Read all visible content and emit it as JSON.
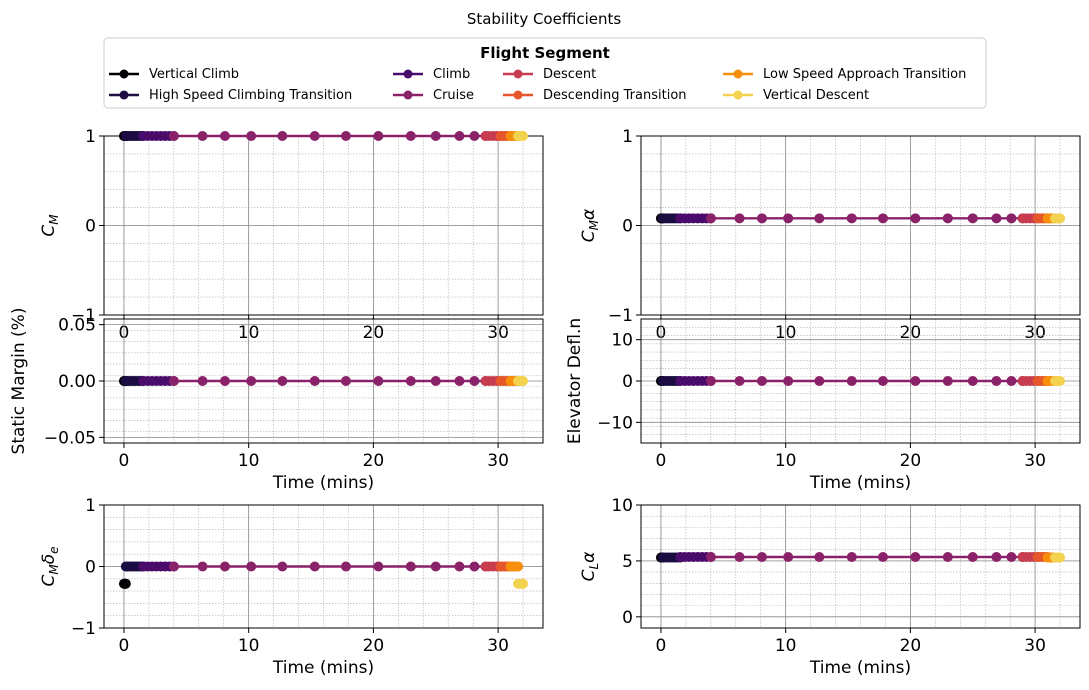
{
  "figure": {
    "title": "Stability Coefficients"
  },
  "legend": {
    "title": "Flight Segment",
    "entries": [
      {
        "name": "Vertical Climb",
        "color": "#000004"
      },
      {
        "name": "High Speed Climbing Transition",
        "color": "#1b0c41"
      },
      {
        "name": "Climb",
        "color": "#4a0c6b"
      },
      {
        "name": "Cruise",
        "color": "#8a226a"
      },
      {
        "name": "Descent",
        "color": "#c73d4f"
      },
      {
        "name": "Descending Transition",
        "color": "#e5562a"
      },
      {
        "name": "Low Speed Approach Transition",
        "color": "#f68f0d"
      },
      {
        "name": "Vertical Descent",
        "color": "#f3d250"
      }
    ]
  },
  "chart_data": [
    {
      "type": "line",
      "panel": "top-left",
      "ylabel": "C_M",
      "xlabel": "",
      "xlim": [
        -1.6,
        33.6
      ],
      "ylim": [
        -1,
        1
      ],
      "xticks": [
        0,
        10,
        20,
        30
      ],
      "yticks": [
        -1,
        0,
        1
      ],
      "grid": true,
      "segment_values": [
        1,
        1,
        1,
        1,
        1,
        1,
        1,
        1
      ]
    },
    {
      "type": "line",
      "panel": "top-right",
      "ylabel": "C_Mα",
      "xlabel": "",
      "xlim": [
        -1.6,
        33.6
      ],
      "ylim": [
        -1,
        1
      ],
      "xticks": [
        0,
        10,
        20,
        30
      ],
      "yticks": [
        -1,
        0,
        1
      ],
      "grid": true,
      "segment_values": [
        0.08,
        0.08,
        0.08,
        0.08,
        0.08,
        0.08,
        0.08,
        0.08
      ]
    },
    {
      "type": "line",
      "panel": "middle-left",
      "ylabel": "Static Margin (%)",
      "xlabel": "Time (mins)",
      "xlim": [
        -1.6,
        33.6
      ],
      "ylim": [
        -0.055,
        0.055
      ],
      "xticks": [
        0,
        10,
        20,
        30
      ],
      "yticks": [
        -0.05,
        0.0,
        0.05
      ],
      "ytick_labels": [
        "−0.05",
        "0.00",
        "0.05"
      ],
      "grid": true,
      "segment_values": [
        0,
        0,
        0,
        0,
        0,
        0,
        0,
        0
      ]
    },
    {
      "type": "line",
      "panel": "middle-right",
      "ylabel": "Elevator Defl.n",
      "xlabel": "Time (mins)",
      "xlim": [
        -1.6,
        33.6
      ],
      "ylim": [
        -15,
        15
      ],
      "xticks": [
        0,
        10,
        20,
        30
      ],
      "yticks": [
        -10,
        0,
        10
      ],
      "grid": true,
      "segment_values": [
        0,
        0,
        0,
        0,
        0,
        0,
        0,
        0
      ]
    },
    {
      "type": "line",
      "panel": "bottom-left",
      "ylabel": "C_Mδe",
      "xlabel": "Time (mins)",
      "xlim": [
        -1.6,
        33.6
      ],
      "ylim": [
        -1,
        1
      ],
      "xticks": [
        0,
        10,
        20,
        30
      ],
      "yticks": [
        -1,
        0,
        1
      ],
      "grid": true,
      "segment_values": [
        -0.28,
        0,
        0,
        0,
        0,
        0,
        0,
        -0.28
      ]
    },
    {
      "type": "line",
      "panel": "bottom-right",
      "ylabel": "C_Lα",
      "xlabel": "Time (mins)",
      "xlim": [
        -1.6,
        33.6
      ],
      "ylim": [
        -1,
        10
      ],
      "xticks": [
        0,
        10,
        20,
        30
      ],
      "yticks": [
        0,
        5,
        10
      ],
      "grid": true,
      "segment_values": [
        5.3,
        5.3,
        5.35,
        5.35,
        5.35,
        5.35,
        5.3,
        5.3
      ]
    }
  ],
  "segments": [
    {
      "name": "Vertical Climb",
      "times": [
        0,
        0.05,
        0.1,
        0.15
      ]
    },
    {
      "name": "High Speed Climbing Transition",
      "times": [
        0.15,
        0.35,
        0.55,
        0.75,
        0.95,
        1.15,
        1.35,
        1.55
      ]
    },
    {
      "name": "Climb",
      "times": [
        1.55,
        1.9,
        2.25,
        2.6,
        2.95,
        3.3,
        3.65,
        4.0
      ]
    },
    {
      "name": "Cruise",
      "times": [
        4.0,
        6.3,
        8.1,
        10.2,
        12.7,
        15.3,
        17.8,
        20.4,
        23.0,
        25.0,
        26.9,
        28.1,
        29.0
      ]
    },
    {
      "name": "Descent",
      "times": [
        29.0,
        29.3,
        29.6,
        29.9,
        30.2
      ]
    },
    {
      "name": "Descending Transition",
      "times": [
        30.2,
        30.4,
        30.6,
        30.8,
        31.0
      ]
    },
    {
      "name": "Low Speed Approach Transition",
      "times": [
        31.0,
        31.15,
        31.3,
        31.45,
        31.6
      ]
    },
    {
      "name": "Vertical Descent",
      "times": [
        31.6,
        31.7,
        31.8,
        31.9,
        32.0
      ]
    }
  ]
}
